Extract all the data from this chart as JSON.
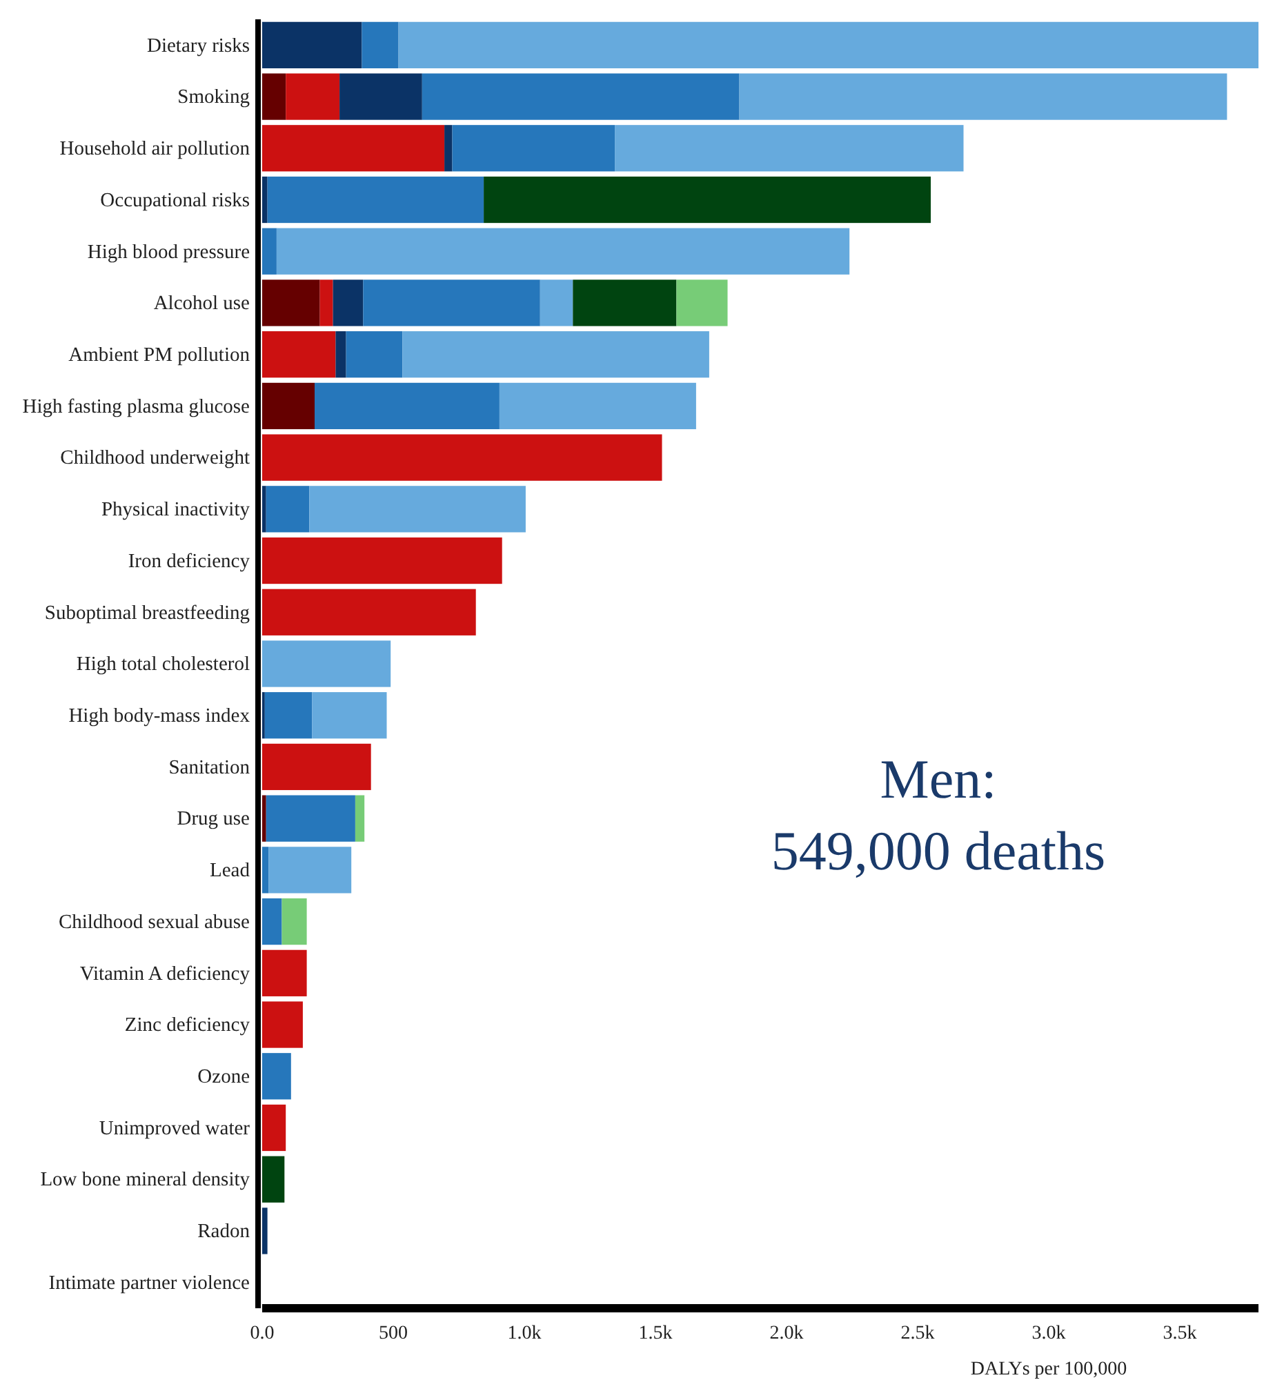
{
  "chart_data": {
    "type": "bar",
    "orientation": "horizontal",
    "stacked": true,
    "xlabel": "DALYs per 100,000",
    "annotations": [
      "Men:",
      "549,000 deaths"
    ],
    "categories": [
      "Dietary risks",
      "Smoking",
      "Household air pollution",
      "Occupational risks",
      "High blood pressure",
      "Alcohol use",
      "Ambient PM pollution",
      "High fasting plasma glucose",
      "Childhood underweight",
      "Physical inactivity",
      "Iron deficiency",
      "Suboptimal breastfeeding",
      "High total cholesterol",
      "High body-mass index",
      "Sanitation",
      "Drug use",
      "Lead",
      "Childhood sexual abuse",
      "Vitamin A deficiency",
      "Zinc deficiency",
      "Ozone",
      "Unimproved water",
      "Low bone mineral density",
      "Radon",
      "Intimate partner violence"
    ],
    "xlim": [
      0,
      3800
    ],
    "xticks": [
      {
        "value": 0,
        "label": "0.0"
      },
      500,
      {
        "value": 1000,
        "label": "1.0k"
      },
      {
        "value": 1500,
        "label": "1.5k"
      },
      {
        "value": 2000,
        "label": "2.0k"
      },
      {
        "value": 2500,
        "label": "2.5k"
      },
      {
        "value": 3000,
        "label": "3.0k"
      },
      {
        "value": 3500,
        "label": "3.5k"
      }
    ],
    "series": [
      {
        "color": "#650000",
        "values": [
          null,
          90,
          null,
          null,
          null,
          220,
          null,
          200,
          null,
          null,
          null,
          null,
          null,
          null,
          null,
          15,
          null,
          null,
          null,
          null,
          null,
          null,
          null,
          null,
          null
        ]
      },
      {
        "color": "#cc1111",
        "values": [
          null,
          205,
          695,
          null,
          null,
          50,
          280,
          null,
          1525,
          null,
          915,
          815,
          null,
          null,
          415,
          null,
          null,
          null,
          170,
          155,
          null,
          90,
          null,
          null,
          null
        ]
      },
      {
        "color": "#0b3366",
        "values": [
          380,
          315,
          30,
          20,
          null,
          115,
          40,
          null,
          null,
          15,
          null,
          null,
          null,
          10,
          null,
          null,
          null,
          null,
          null,
          null,
          null,
          null,
          null,
          20,
          null
        ]
      },
      {
        "color": "#2677bb",
        "values": [
          140,
          1210,
          620,
          825,
          55,
          675,
          215,
          705,
          null,
          165,
          null,
          null,
          null,
          180,
          null,
          340,
          25,
          75,
          null,
          null,
          110,
          null,
          null,
          null,
          null
        ]
      },
      {
        "color": "#66aadd",
        "values": [
          3280,
          1860,
          1330,
          null,
          2185,
          125,
          1170,
          750,
          null,
          825,
          null,
          null,
          490,
          285,
          null,
          null,
          315,
          null,
          null,
          null,
          null,
          null,
          null,
          null,
          null
        ]
      },
      {
        "color": "#004410",
        "values": [
          null,
          null,
          null,
          1705,
          null,
          395,
          null,
          null,
          null,
          null,
          null,
          null,
          null,
          null,
          null,
          null,
          null,
          null,
          null,
          null,
          null,
          null,
          85,
          null,
          null
        ]
      },
      {
        "color": "#77cc77",
        "values": [
          null,
          null,
          null,
          null,
          null,
          195,
          null,
          null,
          null,
          null,
          null,
          null,
          null,
          null,
          null,
          35,
          null,
          95,
          null,
          null,
          null,
          null,
          null,
          null,
          null
        ]
      }
    ]
  }
}
